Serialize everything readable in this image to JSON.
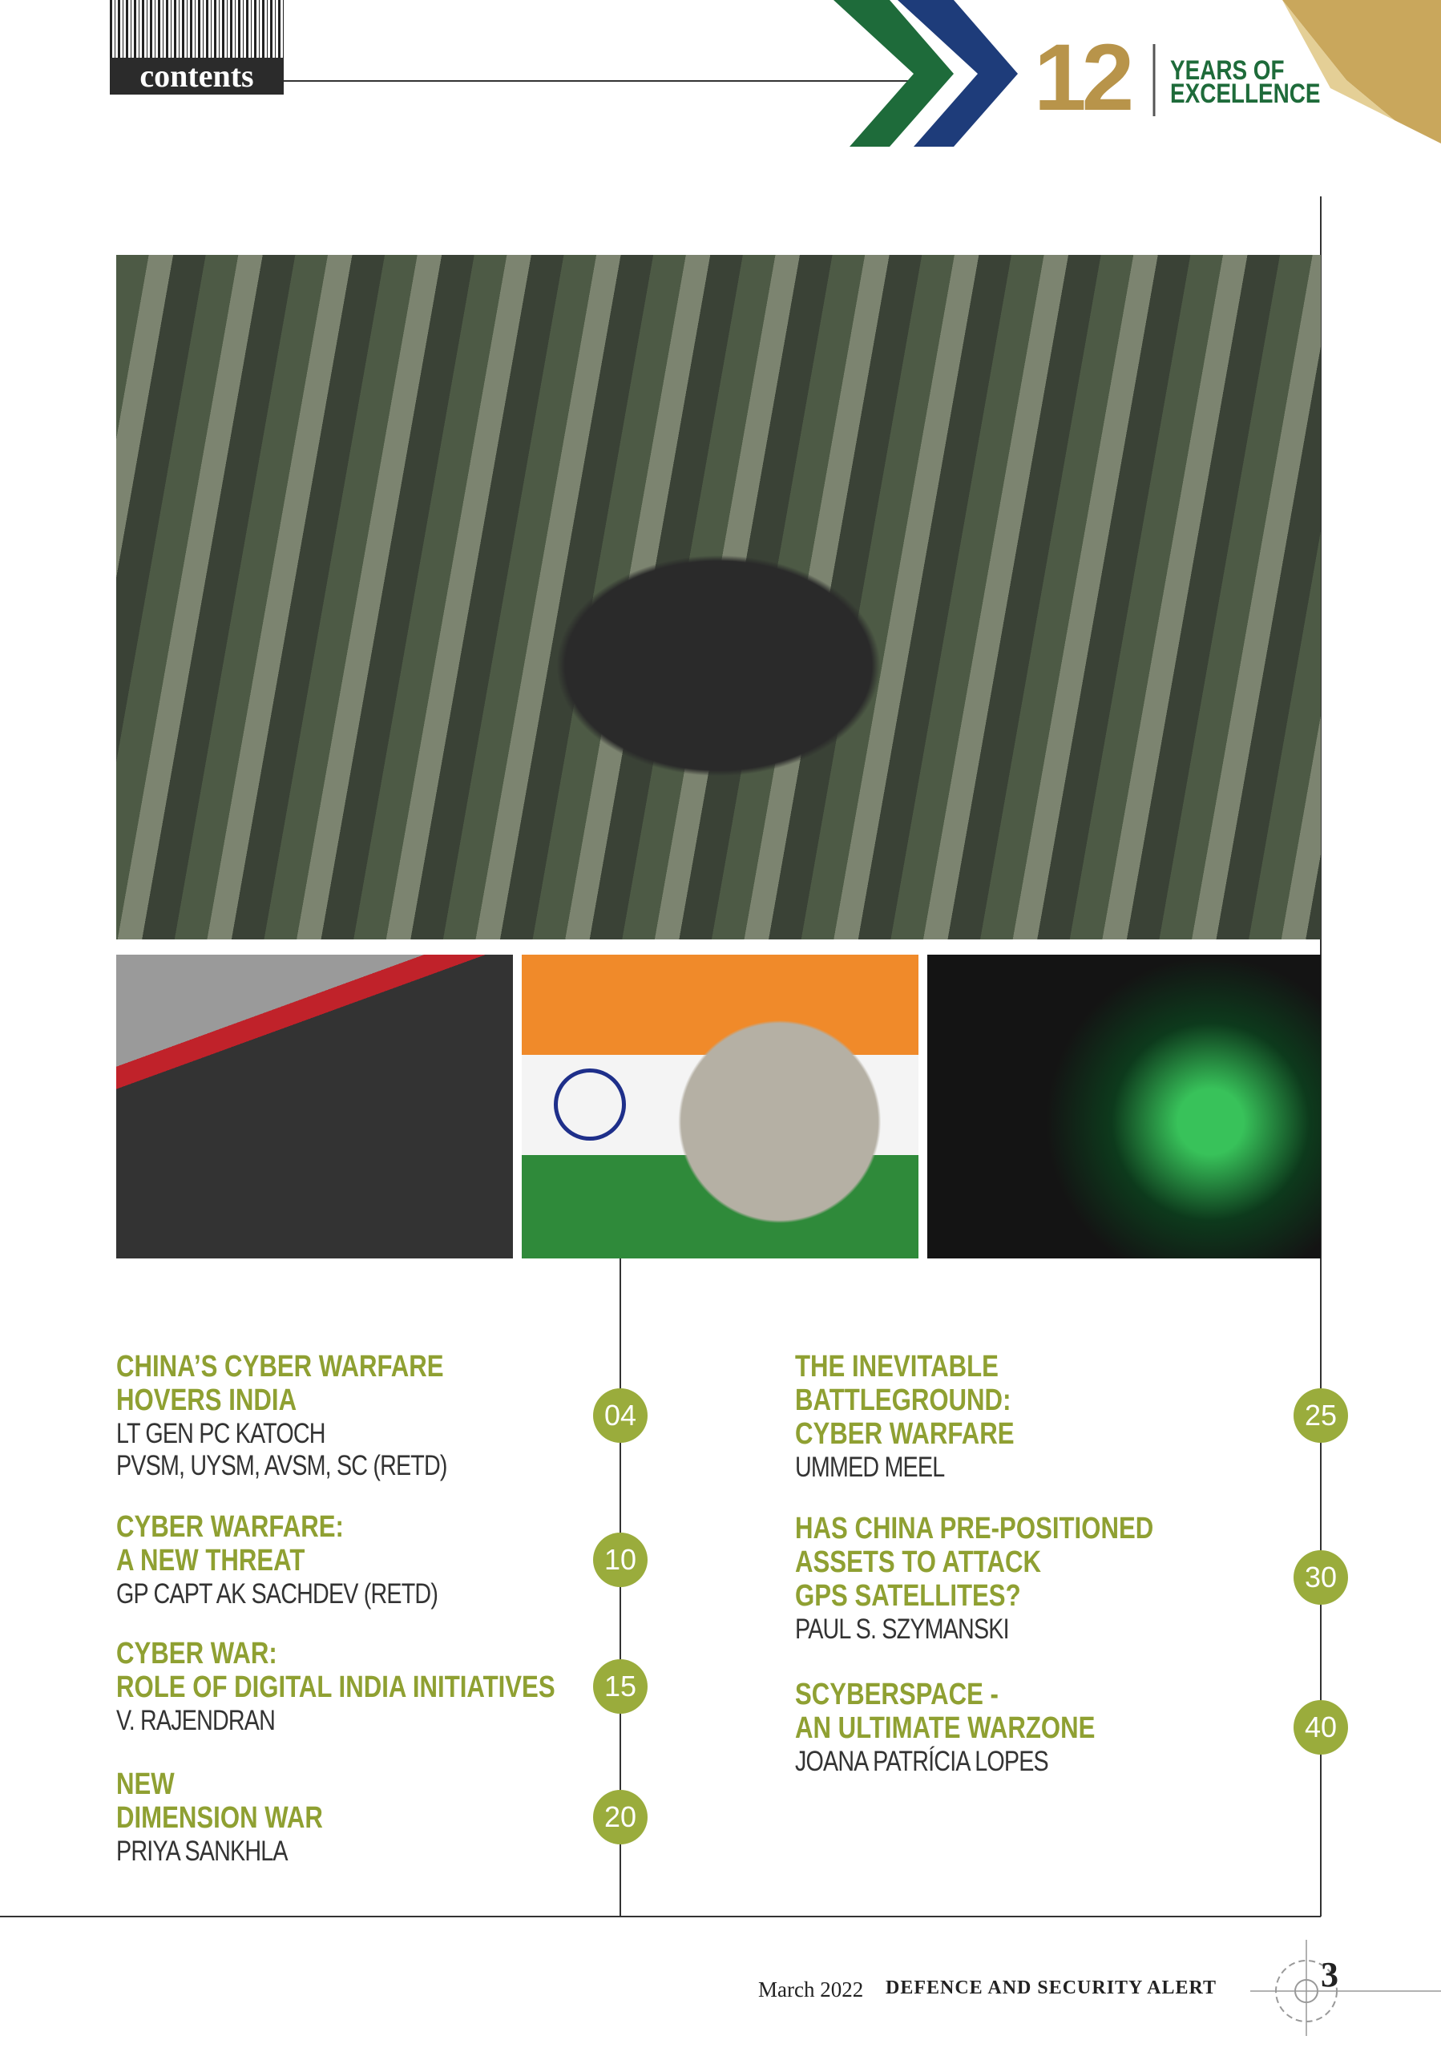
{
  "header": {
    "label": "contents",
    "anniversary_number": "12",
    "anniversary_text_1": "YEARS OF",
    "anniversary_text_2": "EXCELLENCE"
  },
  "articles": [
    {
      "title": [
        "CHINA’S CYBER WARFARE",
        "HOVERS INDIA"
      ],
      "author": [
        "LT GEN PC KATOCH",
        "PVSM, UYSM, AVSM, SC (RETD)"
      ],
      "page": "04"
    },
    {
      "title": [
        "CYBER WARFARE:",
        "A NEW THREAT"
      ],
      "author": [
        "GP CAPT AK SACHDEV (RETD)"
      ],
      "page": "10"
    },
    {
      "title": [
        "CYBER WAR:",
        "ROLE OF DIGITAL INDIA INITIATIVES"
      ],
      "author": [
        "V. RAJENDRAN"
      ],
      "page": "15"
    },
    {
      "title": [
        "NEW",
        "DIMENSION WAR"
      ],
      "author": [
        "PRIYA SANKHLA"
      ],
      "page": "20"
    },
    {
      "title": [
        "THE INEVITABLE",
        "BATTLEGROUND:",
        "CYBER WARFARE"
      ],
      "author": [
        "UMMED MEEL"
      ],
      "page": "25"
    },
    {
      "title": [
        "HAS CHINA PRE-POSITIONED",
        "ASSETS TO ATTACK",
        "GPS SATELLITES?"
      ],
      "author": [
        "PAUL S. SZYMANSKI"
      ],
      "page": "30"
    },
    {
      "title": [
        "SCYBERSPACE  -",
        "AN ULTIMATE WARZONE"
      ],
      "author": [
        "JOANA PATRÍCIA LOPES"
      ],
      "page": "40"
    }
  ],
  "footer": {
    "date": "March 2022",
    "publication": "DEFENCE AND SECURITY ALERT",
    "page_number": "3"
  }
}
